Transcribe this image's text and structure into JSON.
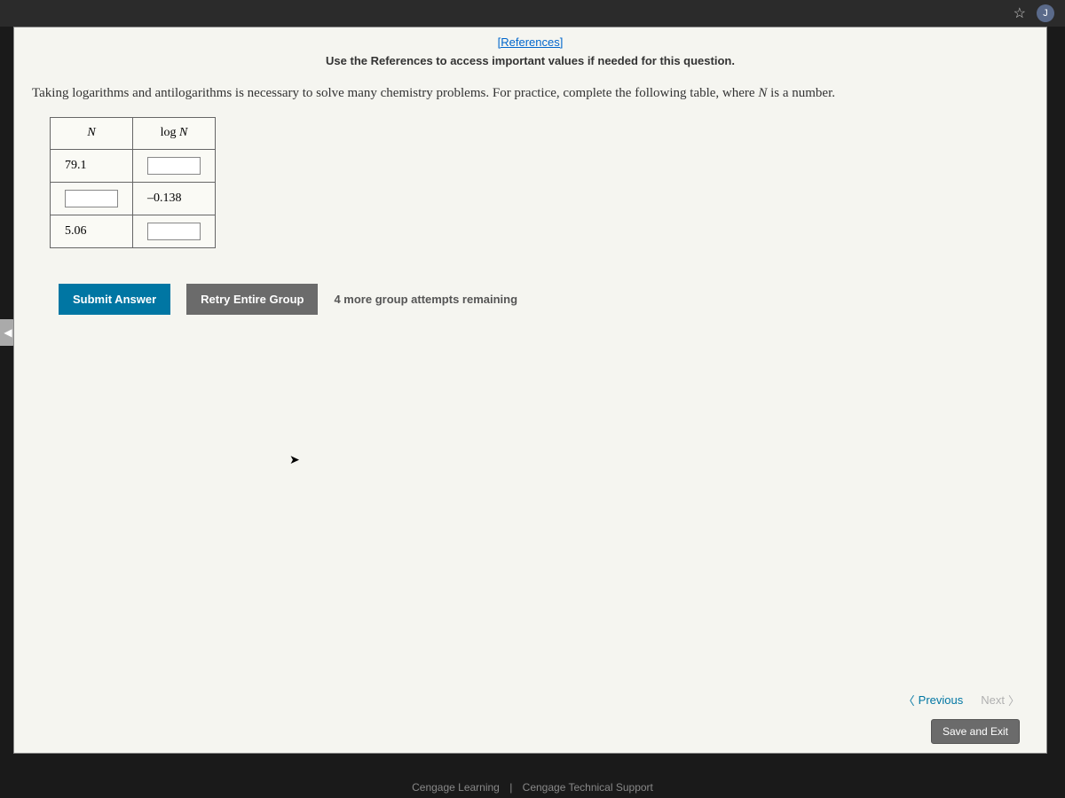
{
  "chrome": {
    "avatar_initial": "J"
  },
  "header": {
    "references_link": "[References]",
    "references_instruction": "Use the References to access important values if needed for this question."
  },
  "question": {
    "text_before": "Taking logarithms and antilogarithms is necessary to solve many chemistry problems. For practice, complete the following table, where ",
    "variable": "N",
    "text_after": " is a number."
  },
  "table": {
    "columns": [
      "N",
      "log N"
    ],
    "rows": [
      {
        "n": "79.1",
        "n_is_input": false,
        "log_n": "",
        "log_n_is_input": true
      },
      {
        "n": "",
        "n_is_input": true,
        "log_n": "–0.138",
        "log_n_is_input": false
      },
      {
        "n": "5.06",
        "n_is_input": false,
        "log_n": "",
        "log_n_is_input": true
      }
    ]
  },
  "buttons": {
    "submit": "Submit Answer",
    "retry": "Retry Entire Group",
    "attempts": "4 more group attempts remaining"
  },
  "nav": {
    "previous": "Previous",
    "next": "Next",
    "save_exit": "Save and Exit"
  },
  "footer": {
    "left": "Cengage Learning",
    "right": "Cengage Technical Support"
  },
  "colors": {
    "primary_button": "#0076a3",
    "secondary_button": "#6b6b6b",
    "link": "#0066cc",
    "page_bg": "#f5f5f0"
  }
}
